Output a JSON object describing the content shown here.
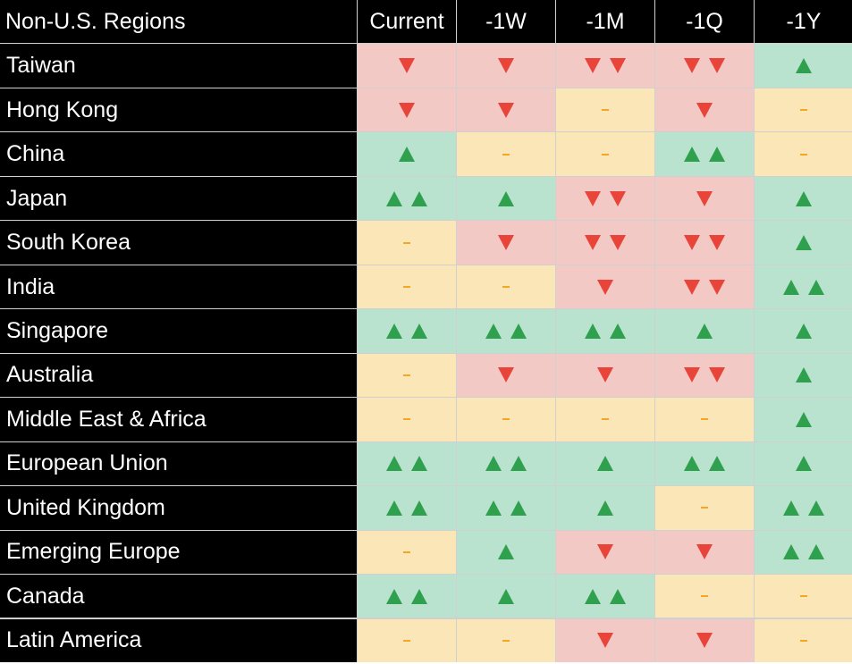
{
  "table": {
    "header": [
      "Non-U.S. Regions",
      "Current",
      "-1W",
      "-1M",
      "-1Q",
      "-1Y"
    ],
    "rows": [
      {
        "region": "Taiwan",
        "signals": [
          "down1",
          "down1",
          "down2",
          "down2",
          "up1"
        ]
      },
      {
        "region": "Hong Kong",
        "signals": [
          "down1",
          "down1",
          "flat",
          "down1",
          "flat"
        ]
      },
      {
        "region": "China",
        "signals": [
          "up1",
          "flat",
          "flat",
          "up2",
          "flat"
        ]
      },
      {
        "region": "Japan",
        "signals": [
          "up2",
          "up1",
          "down2",
          "down1",
          "up1"
        ]
      },
      {
        "region": "South Korea",
        "signals": [
          "flat",
          "down1",
          "down2",
          "down2",
          "up1"
        ]
      },
      {
        "region": "India",
        "signals": [
          "flat",
          "flat",
          "down1",
          "down2",
          "up2"
        ]
      },
      {
        "region": "Singapore",
        "signals": [
          "up2",
          "up2",
          "up2",
          "up1",
          "up1"
        ]
      },
      {
        "region": "Australia",
        "signals": [
          "flat",
          "down1",
          "down1",
          "down2",
          "up1"
        ]
      },
      {
        "region": "Middle East & Africa",
        "signals": [
          "flat",
          "flat",
          "flat",
          "flat",
          "up1"
        ]
      },
      {
        "region": "European Union",
        "signals": [
          "up2",
          "up2",
          "up1",
          "up2",
          "up1"
        ]
      },
      {
        "region": "United Kingdom",
        "signals": [
          "up2",
          "up2",
          "up1",
          "flat",
          "up2"
        ]
      },
      {
        "region": "Emerging Europe",
        "signals": [
          "flat",
          "up1",
          "down1",
          "down1",
          "up2"
        ]
      },
      {
        "region": "Canada",
        "signals": [
          "up2",
          "up1",
          "up2",
          "flat",
          "flat"
        ]
      },
      {
        "region": "Latin America",
        "signals": [
          "flat",
          "flat",
          "down1",
          "down1",
          "flat"
        ]
      }
    ]
  },
  "icons": {
    "up": "triangle-up-icon",
    "down": "triangle-down-icon",
    "flat": "dash-icon"
  },
  "colors": {
    "up_bg": "#b9e2cf",
    "down_bg": "#f3c9c6",
    "flat_bg": "#fbe6b8",
    "up_icon": "#2fa04e",
    "down_icon": "#e8443a",
    "flat_icon": "#f5a623",
    "header_bg": "#000000"
  }
}
